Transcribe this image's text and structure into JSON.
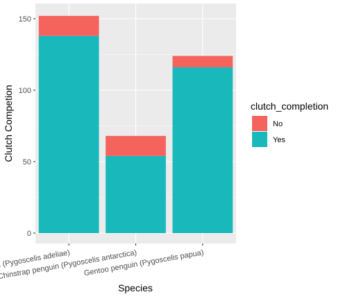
{
  "chart_data": {
    "type": "bar",
    "stacked": true,
    "categories": [
      "Adelie Penguin (Pygoscelis adeliae)",
      "Chinstrap penguin (Pygoscelis antarctica)",
      "Gentoo penguin (Pygoscelis papua)"
    ],
    "series": [
      {
        "name": "Yes",
        "values": [
          138,
          54,
          116
        ],
        "color": "#19b8bb"
      },
      {
        "name": "No",
        "values": [
          14,
          14,
          8
        ],
        "color": "#f4645d"
      }
    ],
    "xlabel": "Species",
    "ylabel": "Clutch Competion",
    "ylim": [
      0,
      160
    ],
    "yticks": [
      0,
      50,
      100,
      150
    ],
    "grid": true,
    "panel_background": "#ebebeb",
    "legend": {
      "title": "clutch_completion",
      "placement": "right",
      "entries": [
        "No",
        "Yes"
      ]
    }
  }
}
